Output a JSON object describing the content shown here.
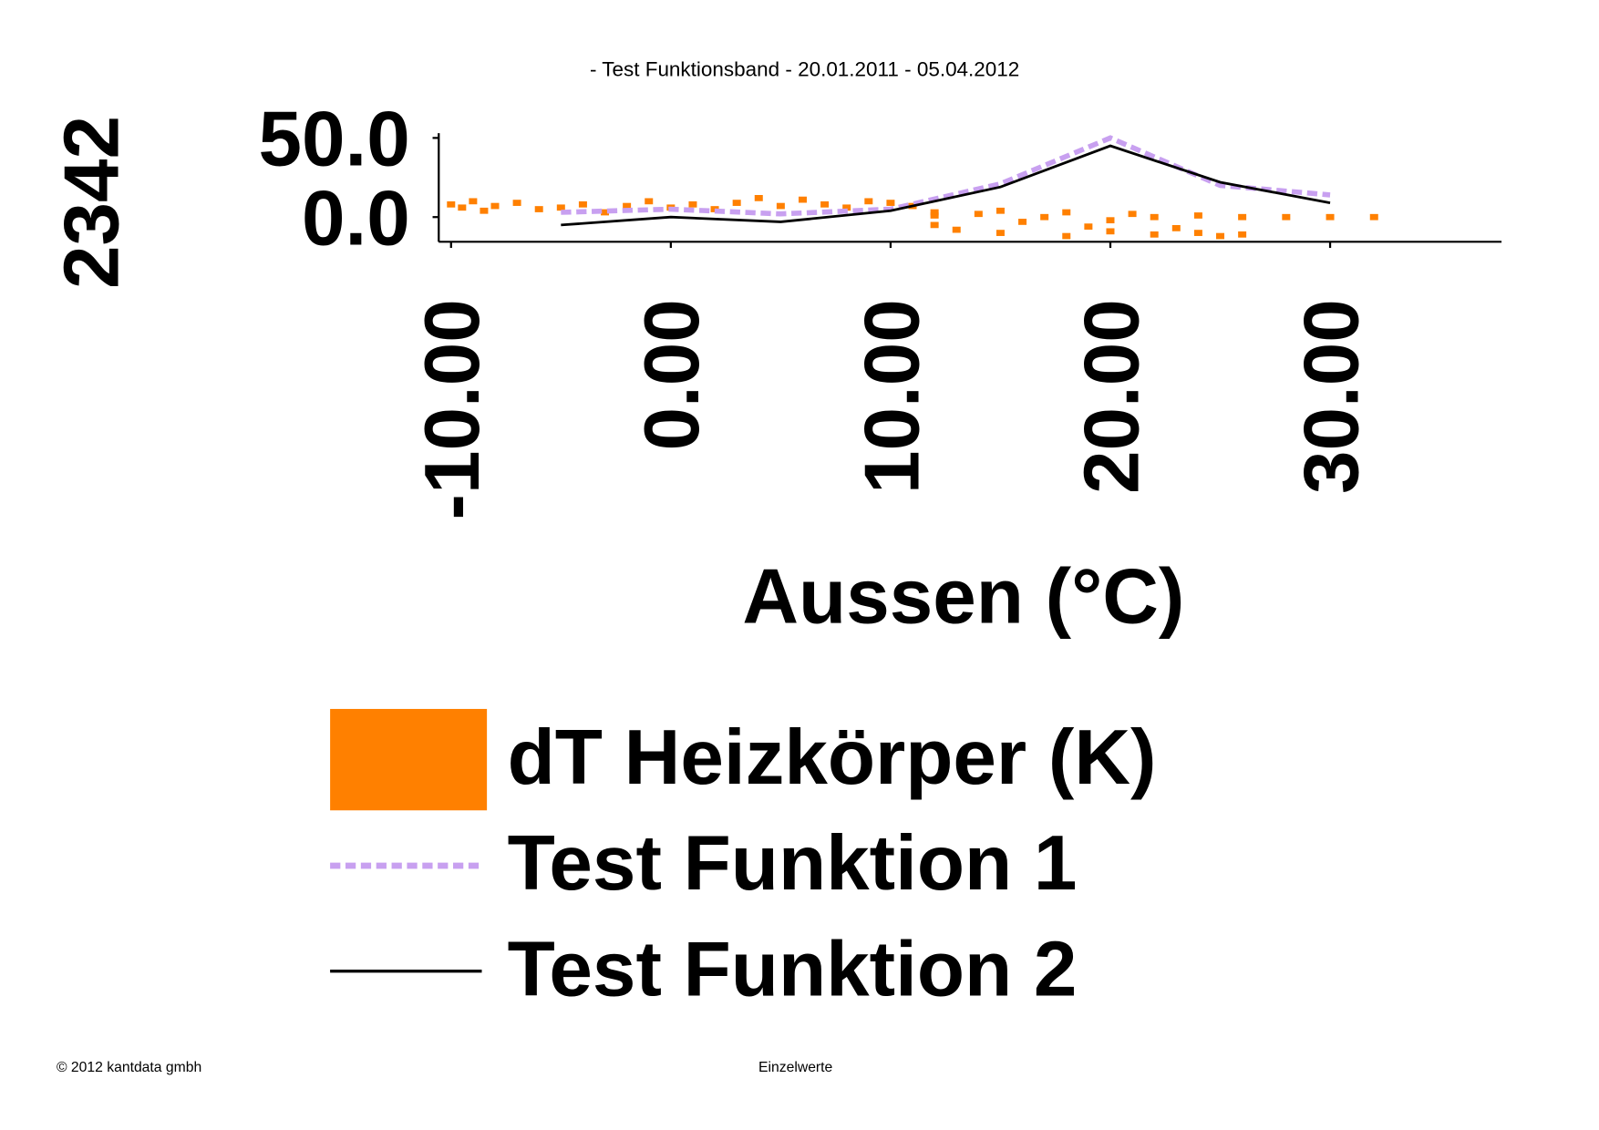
{
  "chart_data": {
    "type": "scatter",
    "title": "- Test Funktionsband - 20.01.2011 - 05.04.2012",
    "xlabel": "Aussen (°C)",
    "ylabel": "2342",
    "xlim": [
      -10.56,
      37.8
    ],
    "ylim": [
      -15.6,
      53
    ],
    "xticks": [
      {
        "value": -10,
        "label": "-10.00"
      },
      {
        "value": 0,
        "label": "0.00"
      },
      {
        "value": 10,
        "label": "10.00"
      },
      {
        "value": 20,
        "label": "20.00"
      },
      {
        "value": 30,
        "label": "30.00"
      }
    ],
    "yticks": [
      {
        "value": 0,
        "label": "0.0"
      },
      {
        "value": 50,
        "label": "50.0"
      }
    ],
    "series": [
      {
        "name": "dT Heizkörper (K)",
        "type": "scatter",
        "color": "#ff8000",
        "x": [
          -10,
          -9.5,
          -9,
          -8.5,
          -8,
          -7,
          -6,
          -5,
          -4,
          -3,
          -2,
          -1,
          0,
          1,
          2,
          3,
          4,
          5,
          6,
          7,
          8,
          9,
          10,
          11,
          12,
          12,
          13,
          14,
          15,
          16,
          17,
          18,
          19,
          20,
          21,
          22,
          23,
          24,
          25,
          26,
          22,
          24,
          26,
          28,
          30,
          32,
          15,
          18,
          20,
          12
        ],
        "values": [
          8,
          6,
          10,
          4,
          7,
          9,
          5,
          6,
          8,
          3,
          7,
          10,
          6,
          8,
          5,
          9,
          12,
          7,
          11,
          8,
          6,
          10,
          9,
          7,
          3,
          -5,
          -8,
          2,
          -10,
          -3,
          0,
          -12,
          -6,
          -9,
          2,
          -11,
          -7,
          -10,
          -12,
          -11,
          0,
          1,
          0,
          0,
          0,
          0,
          4,
          3,
          -2,
          1
        ]
      },
      {
        "name": "Test Funktion 1",
        "type": "line",
        "dashed": true,
        "color": "#c8a0f0",
        "x": [
          -5,
          0,
          5,
          10,
          15,
          20,
          25,
          30
        ],
        "values": [
          3,
          5,
          2,
          5,
          21,
          50,
          20,
          14
        ]
      },
      {
        "name": "Test Funktion 2",
        "type": "line",
        "dashed": false,
        "color": "#000000",
        "x": [
          -5,
          0,
          5,
          10,
          15,
          20,
          25,
          30
        ],
        "values": [
          -5,
          0,
          -3,
          4,
          19,
          45,
          22,
          9
        ]
      }
    ],
    "footer_left": "© 2012 kantdata gmbh",
    "footer_center": "Einzelwerte"
  }
}
